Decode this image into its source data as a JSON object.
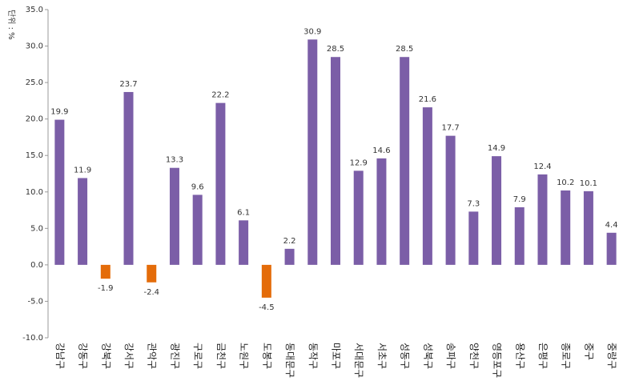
{
  "chart_data": {
    "type": "bar",
    "ylabel": "단위 : %",
    "categories": [
      "강남구",
      "강동구",
      "강북구",
      "강서구",
      "관악구",
      "광진구",
      "구로구",
      "금천구",
      "노원구",
      "도봉구",
      "동대문구",
      "동작구",
      "마포구",
      "서대문구",
      "서초구",
      "성동구",
      "성북구",
      "송파구",
      "양천구",
      "영등포구",
      "용산구",
      "은평구",
      "종로구",
      "중구",
      "중랑구"
    ],
    "values": [
      19.9,
      11.9,
      -1.9,
      23.7,
      -2.4,
      13.3,
      9.6,
      22.2,
      6.1,
      -4.5,
      2.2,
      30.9,
      28.5,
      12.9,
      14.6,
      28.5,
      21.6,
      17.7,
      7.3,
      14.9,
      7.9,
      12.4,
      10.2,
      10.1,
      4.4
    ],
    "color": "#7b5ea7",
    "negative_color": "#e46c0a",
    "ylim": [
      -10,
      35
    ],
    "yticks": [
      {
        "value": -10,
        "label": "-10.0"
      },
      {
        "value": -5,
        "label": "-5.0"
      },
      {
        "value": 0,
        "label": "0.0"
      },
      {
        "value": 5,
        "label": "5.0"
      },
      {
        "value": 10,
        "label": "10.0"
      },
      {
        "value": 15,
        "label": "15.0"
      },
      {
        "value": 20,
        "label": "20.0"
      },
      {
        "value": 25,
        "label": "25.0"
      },
      {
        "value": 30,
        "label": "30.0"
      },
      {
        "value": 35,
        "label": "35.0"
      }
    ],
    "grid": false
  }
}
